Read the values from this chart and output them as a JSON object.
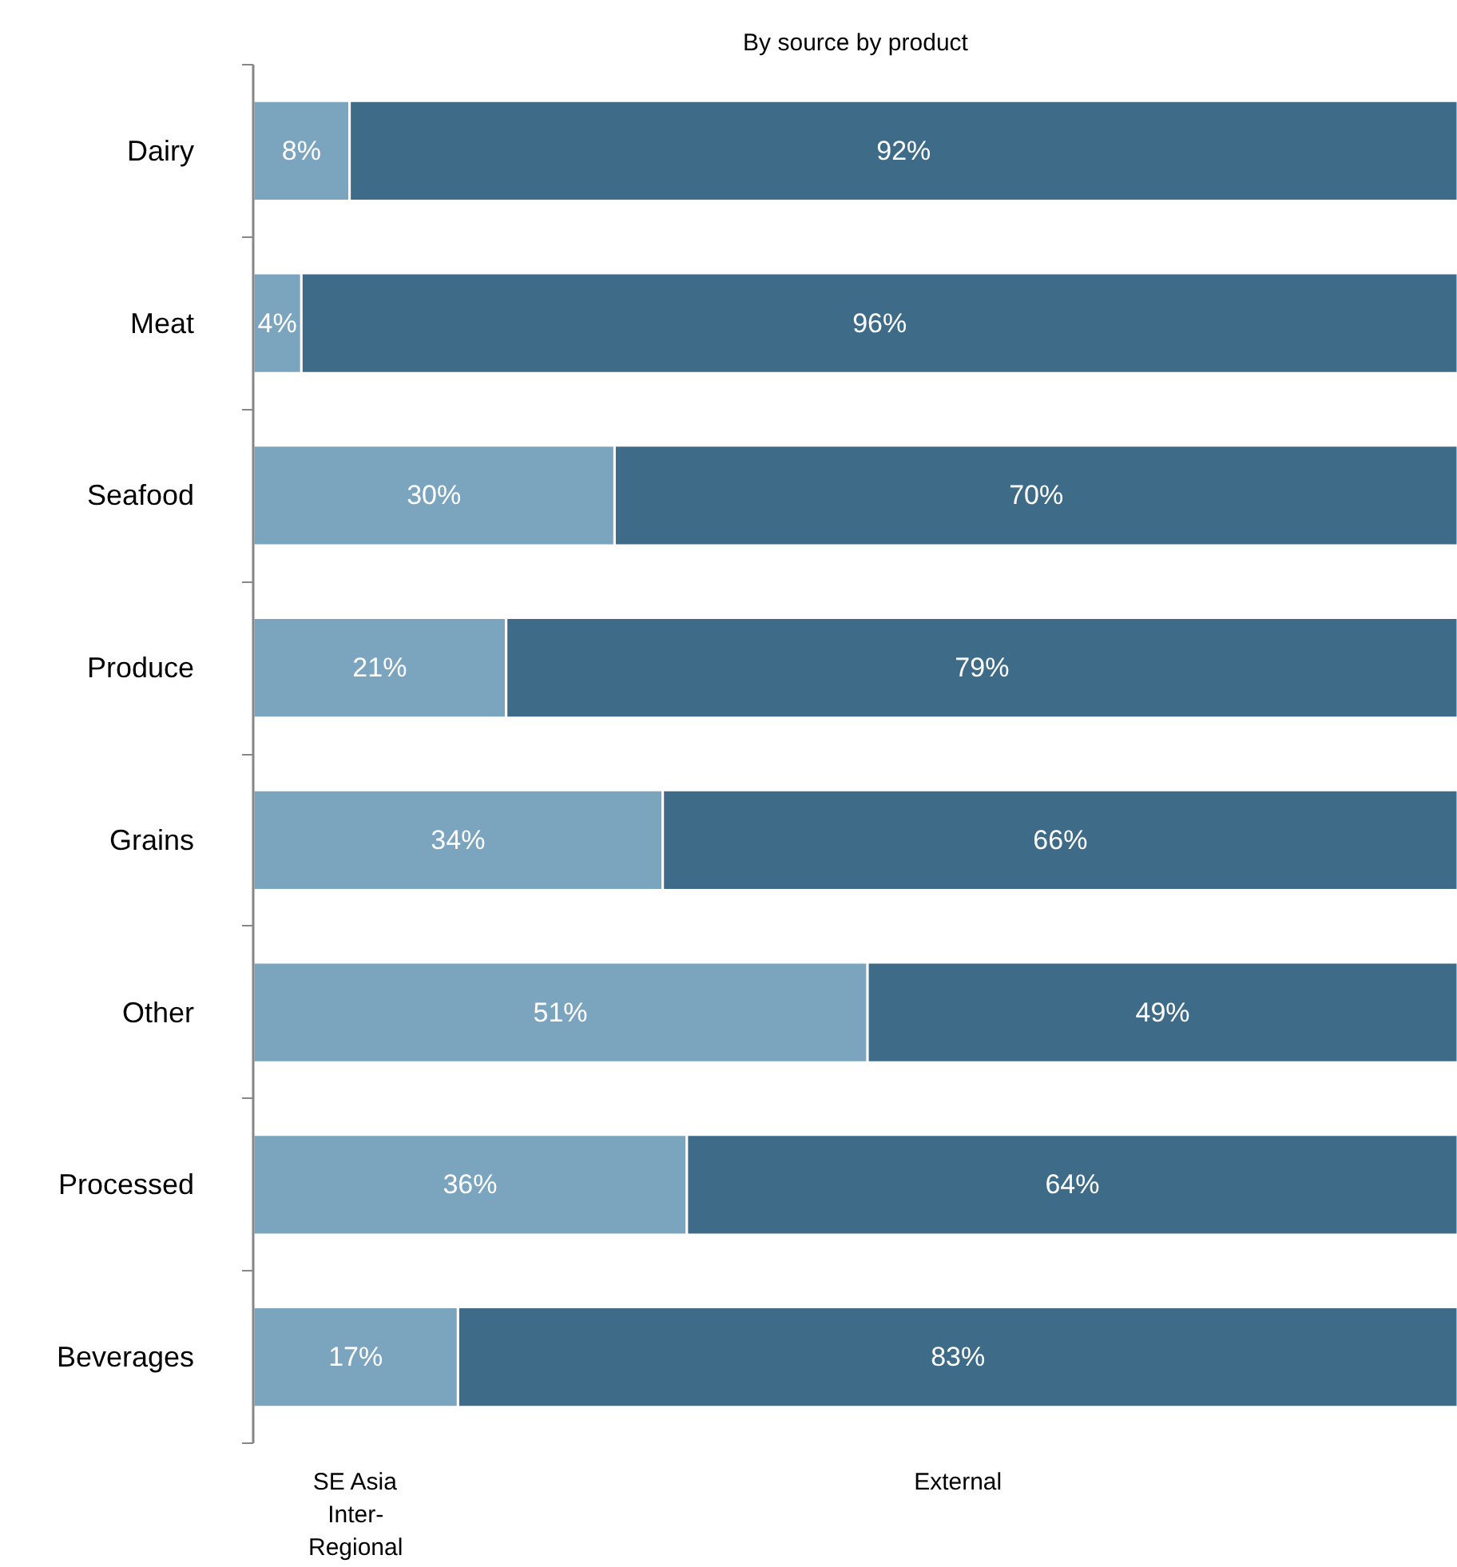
{
  "chart_data": {
    "type": "bar",
    "orientation": "horizontal",
    "stacked": true,
    "title": "By source by product",
    "categories": [
      "Dairy",
      "Meat",
      "Seafood",
      "Produce",
      "Grains",
      "Other",
      "Processed",
      "Beverages"
    ],
    "series": [
      {
        "name": "SE Asia Inter-Regional",
        "color": "#7ba4bf",
        "values": [
          8,
          4,
          30,
          21,
          34,
          51,
          36,
          17
        ],
        "value_labels": [
          "8%",
          "4%",
          "30%",
          "21%",
          "34%",
          "51%",
          "36%",
          "17%"
        ]
      },
      {
        "name": "External",
        "color": "#3e6b88",
        "values": [
          92,
          96,
          70,
          79,
          66,
          49,
          64,
          83
        ],
        "value_labels": [
          "92%",
          "96%",
          "70%",
          "79%",
          "66%",
          "49%",
          "64%",
          "83%"
        ]
      }
    ],
    "xlim": [
      0,
      100
    ],
    "tick_labels": "y",
    "legend": "bottom"
  }
}
